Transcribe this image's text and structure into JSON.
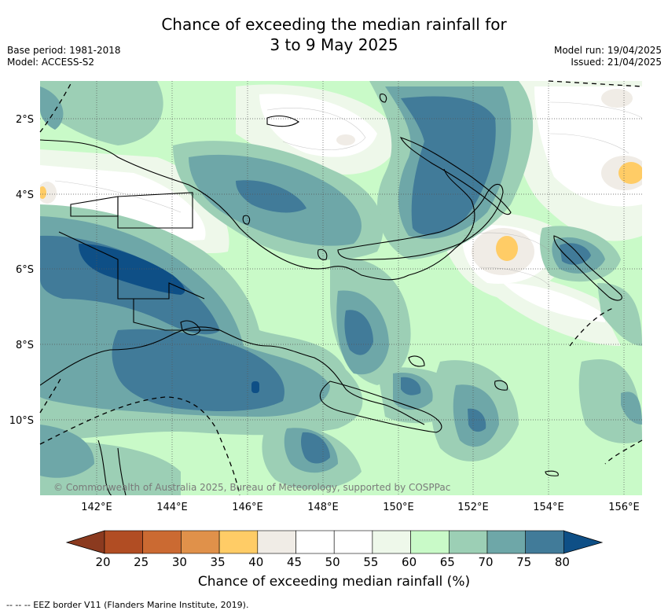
{
  "title_line1": "Chance of exceeding the median rainfall for",
  "title_line2": "3 to 9 May 2025",
  "meta_left": [
    "Base period: 1981-2018",
    "Model: ACCESS-S2"
  ],
  "meta_right": [
    "Model run: 19/04/2025",
    "Issued: 21/04/2025"
  ],
  "copyright": "© Commonwealth of Australia 2025, Bureau of Meteorology, supported by COSPPac",
  "lat_labels": [
    "2°S",
    "4°S",
    "6°S",
    "8°S",
    "10°S"
  ],
  "lon_labels": [
    "142°E",
    "144°E",
    "146°E",
    "148°E",
    "150°E",
    "152°E",
    "154°E",
    "156°E"
  ],
  "colorbar": {
    "ticks": [
      "20",
      "25",
      "30",
      "35",
      "40",
      "45",
      "50",
      "55",
      "60",
      "65",
      "70",
      "75",
      "80"
    ],
    "colors": [
      "#b14d23",
      "#cb6a32",
      "#e0914a",
      "#ffcc66",
      "#f0ece6",
      "#ffffff",
      "#ffffff",
      "#eef8ea",
      "#c9fac8",
      "#9ccfb5",
      "#6ea7a8",
      "#417b99",
      "#0e4f86"
    ],
    "under_color": "#8b3a1f",
    "label": "Chance of exceeding median rainfall (%)"
  },
  "footnote": "-- -- -- EEZ border V11 (Flanders Marine Institute, 2019)."
}
